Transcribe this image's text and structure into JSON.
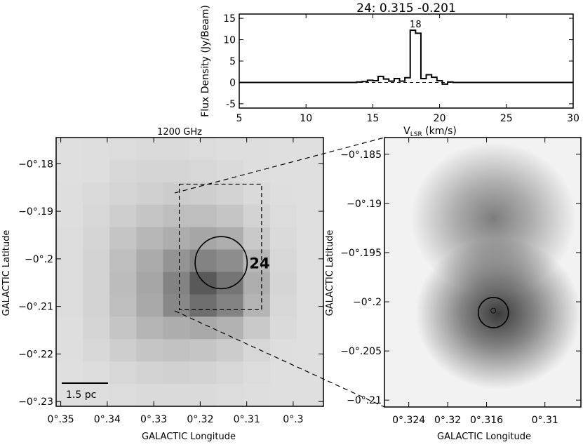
{
  "chart_data": [
    {
      "type": "line",
      "title": "24:  0.315 -0.201",
      "xlabel_main": "V",
      "xlabel_sub": "LSR",
      "xlabel_unit": " (km/s)",
      "ylabel": "Flux Density (Jy/Beam)",
      "xlim": [
        5,
        30
      ],
      "ylim": [
        -6,
        16
      ],
      "xticks": [
        "5",
        "10",
        "15",
        "20",
        "25",
        "30"
      ],
      "xtick_values": [
        5,
        10,
        15,
        20,
        25,
        30
      ],
      "yticks": [
        "-5",
        "0",
        "5",
        "10",
        "15"
      ],
      "ytick_values": [
        -5,
        0,
        5,
        10,
        15
      ],
      "peak_label": "18",
      "peak_label_at": 18.2,
      "series": [
        {
          "step": true,
          "x": [
            5.0,
            13.8,
            14.2,
            14.6,
            15.0,
            15.4,
            15.8,
            16.2,
            16.6,
            17.0,
            17.4,
            17.8,
            18.2,
            18.6,
            19.0,
            19.4,
            19.8,
            20.2,
            20.6,
            21.0,
            30.0
          ],
          "y": [
            0.0,
            0.1,
            0.2,
            0.5,
            0.4,
            1.4,
            0.8,
            0.3,
            0.9,
            0.3,
            1.1,
            12.2,
            11.5,
            0.9,
            1.8,
            1.2,
            0.4,
            -0.4,
            0.1,
            0.0,
            0.0
          ]
        }
      ]
    },
    {
      "type": "heatmap",
      "title": "1200 GHz",
      "xlabel": "GALACTIC Longitude",
      "ylabel": "GALACTIC Latitude",
      "xticks": [
        "0°.35",
        "0°.34",
        "0°.33",
        "0°.32",
        "0°.31",
        "0°.3"
      ],
      "yticks": [
        "−0°.18",
        "−0°.19",
        "−0°.2",
        "−0°.21",
        "−0°.22",
        "−0°.23"
      ],
      "xlim": [
        0.351,
        0.2935
      ],
      "ylim": [
        -0.231,
        -0.1745
      ],
      "grid_cols": 10,
      "grid_rows": 12,
      "intensity": [
        [
          0.05,
          0.06,
          0.07,
          0.08,
          0.08,
          0.07,
          0.06,
          0.06,
          0.05,
          0.05
        ],
        [
          0.05,
          0.06,
          0.09,
          0.11,
          0.11,
          0.1,
          0.08,
          0.06,
          0.05,
          0.05
        ],
        [
          0.06,
          0.08,
          0.11,
          0.14,
          0.16,
          0.15,
          0.12,
          0.08,
          0.06,
          0.05
        ],
        [
          0.06,
          0.1,
          0.15,
          0.2,
          0.24,
          0.24,
          0.2,
          0.12,
          0.07,
          0.05
        ],
        [
          0.07,
          0.11,
          0.2,
          0.28,
          0.34,
          0.38,
          0.33,
          0.18,
          0.08,
          0.05
        ],
        [
          0.07,
          0.12,
          0.24,
          0.35,
          0.48,
          0.58,
          0.52,
          0.28,
          0.1,
          0.05
        ],
        [
          0.07,
          0.12,
          0.25,
          0.38,
          0.58,
          0.82,
          0.66,
          0.33,
          0.11,
          0.05
        ],
        [
          0.07,
          0.12,
          0.24,
          0.36,
          0.55,
          0.7,
          0.58,
          0.3,
          0.1,
          0.05
        ],
        [
          0.06,
          0.11,
          0.2,
          0.29,
          0.34,
          0.36,
          0.31,
          0.18,
          0.08,
          0.05
        ],
        [
          0.06,
          0.09,
          0.15,
          0.2,
          0.22,
          0.2,
          0.16,
          0.1,
          0.06,
          0.05
        ],
        [
          0.05,
          0.07,
          0.1,
          0.12,
          0.13,
          0.12,
          0.1,
          0.07,
          0.05,
          0.05
        ],
        [
          0.05,
          0.06,
          0.07,
          0.08,
          0.08,
          0.08,
          0.07,
          0.06,
          0.05,
          0.05
        ]
      ],
      "source_label": "24",
      "source_center": [
        0.3155,
        -0.2008
      ],
      "source_radius": 0.0056,
      "box_lon": [
        0.3245,
        0.3068
      ],
      "box_lat": [
        -0.1843,
        -0.2107
      ],
      "scalebar_label": "1.5 pc"
    },
    {
      "type": "heatmap",
      "xlabel": "GALACTIC Longitude",
      "ylabel": "GALACTIC Latitude",
      "xticks": [
        "0°.324",
        "0°.32",
        "0°.316",
        "0°.31"
      ],
      "xtick_values": [
        0.324,
        0.32,
        0.316,
        0.31
      ],
      "yticks": [
        "−0°.185",
        "−0°.19",
        "−0°.195",
        "−0°.2",
        "−0°.205",
        "−0°.21"
      ],
      "ytick_values": [
        -0.185,
        -0.19,
        -0.195,
        -0.2,
        -0.205,
        -0.21
      ],
      "xlim": [
        0.3265,
        0.3063
      ],
      "ylim": [
        -0.2107,
        -0.1833
      ],
      "blobs": [
        {
          "center": [
            0.3153,
            -0.1915
          ],
          "strength": 0.55
        },
        {
          "center": [
            0.3148,
            -0.2012
          ],
          "strength": 0.88
        }
      ],
      "ring_center": [
        0.3153,
        -0.2011
      ],
      "ring_radius": 0.00155,
      "marker_center": [
        0.3153,
        -0.2009
      ]
    }
  ]
}
